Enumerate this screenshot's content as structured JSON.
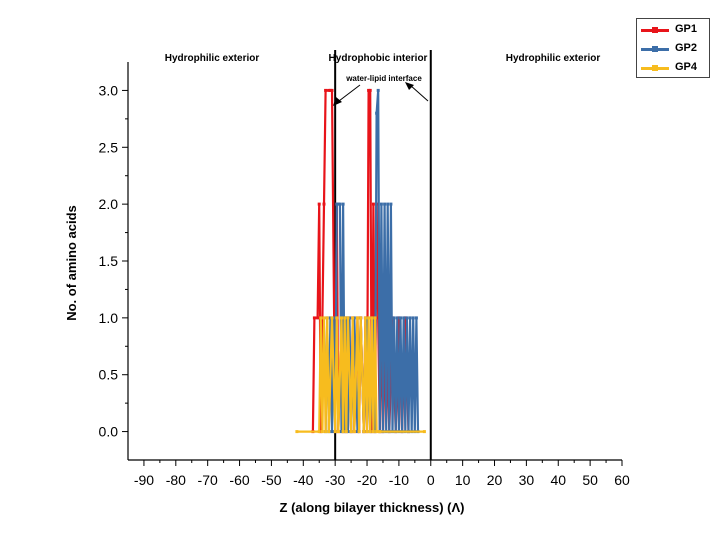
{
  "chart_data": {
    "type": "line",
    "title": "",
    "xlabel": "Z (along bilayer thickness) (Λ)",
    "ylabel": "No. of amino acids",
    "xlim": [
      -95,
      60
    ],
    "ylim": [
      -0.25,
      3.25
    ],
    "x_ticks": [
      -90,
      -80,
      -70,
      -60,
      -50,
      -40,
      -30,
      -20,
      -10,
      0,
      10,
      20,
      30,
      40,
      50,
      60
    ],
    "y_ticks": [
      0.0,
      0.5,
      1.0,
      1.5,
      2.0,
      2.5,
      3.0
    ],
    "y_tick_labels": [
      "0.0",
      "0.5",
      "1.0",
      "1.5",
      "2.0",
      "2.5",
      "3.0"
    ],
    "grid": false,
    "legend_position": "top-right",
    "region_labels": {
      "left": "Hydrophilic exterior",
      "middle": "Hydrophobic interior",
      "right": "Hydrophilic exterior",
      "interface": "water-lipid interface"
    },
    "boundaries_x": [
      -30,
      0
    ],
    "series": [
      {
        "name": "GP1",
        "color": "#e8141a",
        "x": [
          -37,
          -36.5,
          -35.5,
          -35,
          -34.5,
          -34,
          -33.5,
          -33,
          -32,
          -31.5,
          -31,
          -30,
          -29.5,
          -29,
          -28,
          -27.5,
          -27,
          -26.5,
          -26,
          -25,
          -24.5,
          -24,
          -23,
          -22.5,
          -22,
          -21,
          -20.5,
          -20,
          -19.5,
          -19,
          -18.5,
          -18,
          -17.5,
          -17,
          -16.5,
          -16,
          -15.5,
          -15,
          -14,
          -13,
          -12,
          -11,
          -10,
          -9,
          -8,
          -7
        ],
        "y": [
          0,
          1,
          1,
          2,
          0,
          1,
          2,
          3,
          3,
          3,
          3,
          0,
          2,
          0,
          1,
          0,
          1,
          0,
          1,
          0,
          1,
          0,
          1,
          0,
          1,
          0,
          1,
          0,
          3,
          3,
          0,
          2,
          0,
          2,
          1,
          0,
          1,
          0,
          1,
          0,
          1,
          0,
          1,
          0,
          1,
          0
        ]
      },
      {
        "name": "GP2",
        "color": "#3c6ea8",
        "x": [
          -33,
          -32.5,
          -32,
          -31.5,
          -31,
          -30.5,
          -30,
          -29.5,
          -29,
          -28.5,
          -28,
          -27.5,
          -27,
          -26.5,
          -26,
          -25.5,
          -25,
          -24,
          -23,
          -22,
          -21,
          -20,
          -19,
          -18,
          -17.5,
          -17,
          -16.5,
          -16,
          -15.5,
          -15,
          -14.5,
          -14,
          -13.5,
          -13,
          -12.5,
          -12,
          -11.5,
          -11,
          -10.5,
          -10,
          -9.5,
          -9,
          -8.5,
          -8,
          -7.5,
          -7,
          -6.5,
          -6,
          -5.5,
          -5,
          -4.5,
          -4
        ],
        "y": [
          0,
          1,
          0,
          1,
          0,
          1,
          0,
          2,
          2,
          2,
          0,
          2,
          0,
          1,
          0,
          1,
          0,
          1,
          0,
          1,
          0,
          1,
          0,
          1,
          0,
          2.8,
          3,
          0,
          2,
          0,
          2,
          0,
          2,
          0,
          2,
          0,
          1,
          0,
          1,
          0,
          1,
          0,
          1,
          0,
          1,
          0,
          1,
          0,
          1,
          0,
          1,
          0
        ]
      },
      {
        "name": "GP4",
        "color": "#f7bc1e",
        "x": [
          -42,
          -35,
          -34.5,
          -34,
          -33.5,
          -33,
          -32.5,
          -32,
          -31,
          -30,
          -29.5,
          -29,
          -28,
          -27.5,
          -27,
          -26.5,
          -26,
          -25,
          -24.5,
          -24,
          -23,
          -22.5,
          -22,
          -21,
          -20.5,
          -20,
          -19.5,
          -19,
          -18.5,
          -18,
          -17.5,
          -17,
          -16,
          -2
        ],
        "y": [
          0,
          0,
          1,
          0,
          1,
          0,
          1,
          0,
          1,
          0,
          1,
          0,
          1,
          0,
          1,
          0,
          1,
          0,
          1,
          0,
          1,
          0,
          1,
          0,
          1,
          0,
          1,
          0,
          1,
          0,
          1,
          0,
          0,
          0
        ]
      }
    ]
  }
}
